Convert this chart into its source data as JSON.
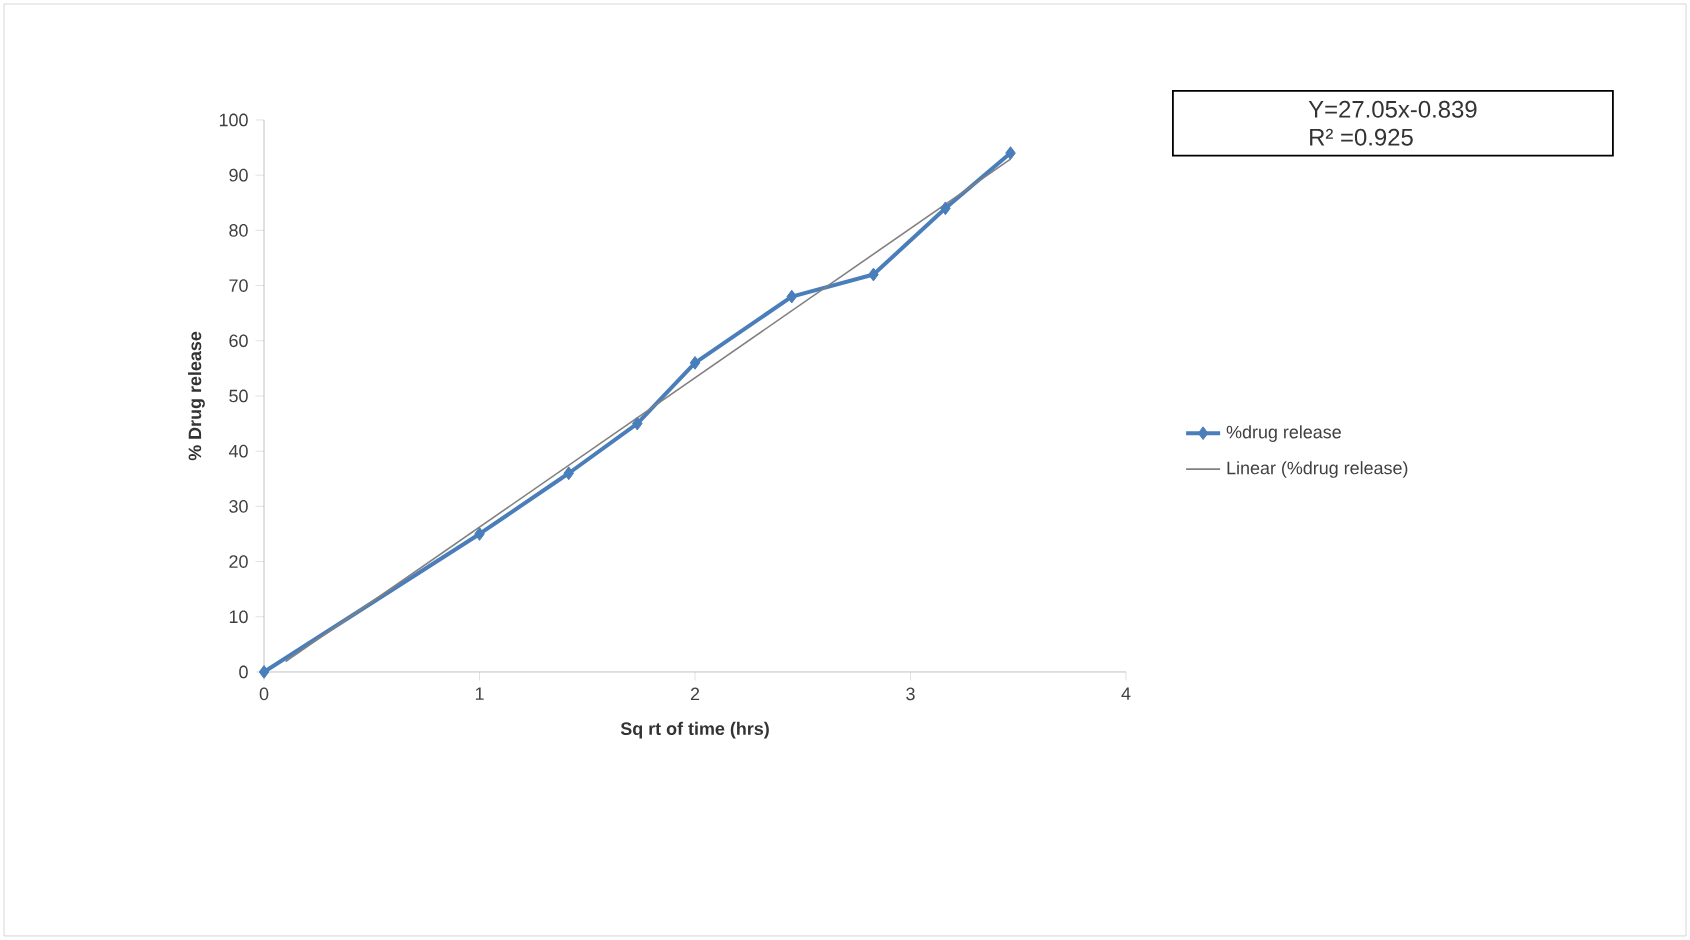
{
  "chart_data": {
    "type": "line",
    "xlabel": "Sq rt of time (hrs)",
    "ylabel": "% Drug release",
    "xlim": [
      0,
      4
    ],
    "ylim": [
      0,
      100
    ],
    "xticks": [
      0,
      1,
      2,
      3,
      4
    ],
    "yticks": [
      0,
      10,
      20,
      30,
      40,
      50,
      60,
      70,
      80,
      90,
      100
    ],
    "legend": "right",
    "annotations": [
      "Y=27.05x-0.839",
      "R² =0.925"
    ],
    "series": [
      {
        "name": "%drug release",
        "color": "#4a7ebb",
        "marker": "diamond",
        "x": [
          0,
          1,
          1.414,
          1.732,
          2,
          2.449,
          2.828,
          3.162,
          3.464
        ],
        "values": [
          0,
          25,
          36,
          45,
          56,
          68,
          72,
          84,
          94
        ]
      },
      {
        "name": "Linear (%drug release)",
        "type": "line",
        "color": "#808080",
        "marker": "none",
        "x": [
          0.1,
          3.464
        ],
        "values": [
          1.9,
          92.9
        ]
      }
    ]
  }
}
